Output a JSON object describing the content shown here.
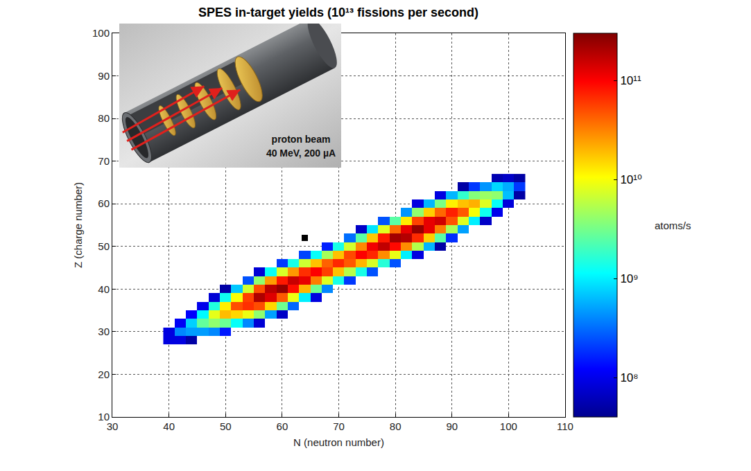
{
  "chart_data": {
    "type": "heatmap",
    "title": "SPES in-target yields (10¹³ fissions per second)",
    "x_label": "N (neutron number)",
    "y_label": "Z (charge number)",
    "xlim": [
      30,
      110
    ],
    "xticks": [
      30,
      40,
      50,
      60,
      70,
      80,
      90,
      100,
      110
    ],
    "ylim": [
      10,
      100
    ],
    "yticks": [
      10,
      20,
      30,
      40,
      50,
      60,
      70,
      80,
      90,
      100
    ],
    "grid": true,
    "colorbar": {
      "title": "atoms/s",
      "log": true,
      "range": [
        40000000.0,
        300000000000.0
      ],
      "ticks": [
        {
          "value": 100000000.0,
          "label": "10⁸"
        },
        {
          "value": 1000000000.0,
          "label": "10⁹"
        },
        {
          "value": 10000000000.0,
          "label": "10¹⁰"
        },
        {
          "value": 100000000000.0,
          "label": "10¹¹"
        }
      ]
    },
    "cells": [
      [
        40,
        28,
        90000000.0
      ],
      [
        42,
        28,
        90000000.0
      ],
      [
        44,
        28,
        50000000.0
      ],
      [
        40,
        30,
        90000000.0
      ],
      [
        42,
        30,
        400000000.0
      ],
      [
        44,
        30,
        480000000.0
      ],
      [
        46,
        30,
        480000000.0
      ],
      [
        48,
        30,
        400000000.0
      ],
      [
        50,
        30,
        150000000.0
      ],
      [
        42,
        32,
        110000000.0
      ],
      [
        44,
        32,
        750000000.0
      ],
      [
        46,
        32,
        2700000000.0
      ],
      [
        48,
        32,
        4000000000.0
      ],
      [
        50,
        32,
        2900000000.0
      ],
      [
        52,
        32,
        1200000000.0
      ],
      [
        54,
        32,
        400000000.0
      ],
      [
        56,
        32,
        80000000.0
      ],
      [
        44,
        34,
        120000000.0
      ],
      [
        46,
        34,
        1100000000.0
      ],
      [
        48,
        34,
        8500000000.0
      ],
      [
        50,
        34,
        19000000000.0
      ],
      [
        52,
        34,
        15000000000.0
      ],
      [
        54,
        34,
        9000000000.0
      ],
      [
        56,
        34,
        4000000000.0
      ],
      [
        58,
        34,
        500000000.0
      ],
      [
        60,
        34,
        70000000.0
      ],
      [
        46,
        36,
        100000000.0
      ],
      [
        48,
        36,
        1500000000.0
      ],
      [
        50,
        36,
        12000000000.0
      ],
      [
        52,
        36,
        50000000000.0
      ],
      [
        54,
        36,
        65000000000.0
      ],
      [
        56,
        36,
        50000000000.0
      ],
      [
        58,
        36,
        15000000000.0
      ],
      [
        60,
        36,
        3000000000.0
      ],
      [
        62,
        36,
        300000000.0
      ],
      [
        48,
        38,
        80000000.0
      ],
      [
        50,
        38,
        1300000000.0
      ],
      [
        52,
        38,
        10000000000.0
      ],
      [
        54,
        38,
        56000000000.0
      ],
      [
        56,
        38,
        200000000000.0
      ],
      [
        58,
        38,
        130000000000.0
      ],
      [
        60,
        38,
        45000000000.0
      ],
      [
        62,
        38,
        9000000000.0
      ],
      [
        64,
        38,
        1000000000.0
      ],
      [
        66,
        38,
        90000000.0
      ],
      [
        50,
        40,
        50000000.0
      ],
      [
        52,
        40,
        700000000.0
      ],
      [
        54,
        40,
        7000000000.0
      ],
      [
        56,
        40,
        50000000000.0
      ],
      [
        58,
        40,
        180000000000.0
      ],
      [
        60,
        40,
        250000000000.0
      ],
      [
        62,
        40,
        88000000000.0
      ],
      [
        64,
        40,
        20000000000.0
      ],
      [
        66,
        40,
        3000000000.0
      ],
      [
        68,
        40,
        400000000.0
      ],
      [
        54,
        42,
        250000000.0
      ],
      [
        56,
        42,
        4000000000.0
      ],
      [
        58,
        42,
        25000000000.0
      ],
      [
        60,
        42,
        80000000000.0
      ],
      [
        62,
        42,
        160000000000.0
      ],
      [
        64,
        42,
        120000000000.0
      ],
      [
        66,
        42,
        33000000000.0
      ],
      [
        68,
        42,
        8000000000.0
      ],
      [
        70,
        42,
        1400000000.0
      ],
      [
        72,
        42,
        200000000.0
      ],
      [
        56,
        44,
        80000000.0
      ],
      [
        58,
        44,
        1200000000.0
      ],
      [
        60,
        44,
        7500000000.0
      ],
      [
        62,
        44,
        26000000000.0
      ],
      [
        64,
        44,
        66000000000.0
      ],
      [
        66,
        44,
        100000000000.0
      ],
      [
        68,
        44,
        56000000000.0
      ],
      [
        70,
        44,
        18000000000.0
      ],
      [
        72,
        44,
        5600000000.0
      ],
      [
        74,
        44,
        1400000000.0
      ],
      [
        76,
        44,
        250000000.0
      ],
      [
        60,
        46,
        200000000.0
      ],
      [
        62,
        46,
        1400000000.0
      ],
      [
        64,
        46,
        6800000000.0
      ],
      [
        66,
        46,
        18000000000.0
      ],
      [
        68,
        46,
        42000000000.0
      ],
      [
        70,
        46,
        70000000000.0
      ],
      [
        72,
        46,
        45000000000.0
      ],
      [
        74,
        46,
        20000000000.0
      ],
      [
        76,
        46,
        7500000000.0
      ],
      [
        78,
        46,
        1600000000.0
      ],
      [
        80,
        46,
        250000000.0
      ],
      [
        64,
        48,
        220000000.0
      ],
      [
        66,
        48,
        1200000000.0
      ],
      [
        68,
        48,
        4800000000.0
      ],
      [
        70,
        48,
        18000000000.0
      ],
      [
        72,
        48,
        52000000000.0
      ],
      [
        74,
        48,
        100000000000.0
      ],
      [
        76,
        48,
        72000000000.0
      ],
      [
        78,
        48,
        29000000000.0
      ],
      [
        80,
        48,
        8800000000.0
      ],
      [
        82,
        48,
        1000000000.0
      ],
      [
        84,
        48,
        90000000.0
      ],
      [
        68,
        50,
        160000000.0
      ],
      [
        70,
        50,
        1400000000.0
      ],
      [
        72,
        50,
        7200000000.0
      ],
      [
        74,
        50,
        30000000000.0
      ],
      [
        76,
        50,
        110000000000.0
      ],
      [
        78,
        50,
        170000000000.0
      ],
      [
        80,
        50,
        92000000000.0
      ],
      [
        82,
        50,
        29000000000.0
      ],
      [
        84,
        50,
        5500000000.0
      ],
      [
        86,
        50,
        600000000.0
      ],
      [
        88,
        50,
        50000000.0
      ],
      [
        72,
        52,
        320000000.0
      ],
      [
        74,
        52,
        2500000000.0
      ],
      [
        76,
        52,
        17000000000.0
      ],
      [
        78,
        52,
        80000000000.0
      ],
      [
        80,
        52,
        220000000000.0
      ],
      [
        82,
        52,
        190000000000.0
      ],
      [
        84,
        52,
        68000000000.0
      ],
      [
        86,
        52,
        16000000000.0
      ],
      [
        88,
        52,
        2500000000.0
      ],
      [
        90,
        52,
        180000000.0
      ],
      [
        74,
        54,
        70000000.0
      ],
      [
        76,
        54,
        900000000.0
      ],
      [
        78,
        54,
        8000000000.0
      ],
      [
        80,
        54,
        40000000000.0
      ],
      [
        82,
        54,
        120000000000.0
      ],
      [
        84,
        54,
        250000000000.0
      ],
      [
        86,
        54,
        120000000000.0
      ],
      [
        88,
        54,
        33000000000.0
      ],
      [
        90,
        54,
        5000000000.0
      ],
      [
        92,
        54,
        500000000.0
      ],
      [
        78,
        56,
        250000000.0
      ],
      [
        80,
        56,
        2500000000.0
      ],
      [
        82,
        56,
        12500000000.0
      ],
      [
        84,
        56,
        55000000000.0
      ],
      [
        86,
        56,
        120000000000.0
      ],
      [
        88,
        56,
        150000000000.0
      ],
      [
        90,
        56,
        48000000000.0
      ],
      [
        92,
        56,
        8000000000.0
      ],
      [
        94,
        56,
        1000000000.0
      ],
      [
        96,
        56,
        70000000.0
      ],
      [
        82,
        58,
        450000000.0
      ],
      [
        84,
        58,
        4000000000.0
      ],
      [
        86,
        58,
        16000000000.0
      ],
      [
        88,
        58,
        40000000000.0
      ],
      [
        90,
        58,
        75000000000.0
      ],
      [
        92,
        58,
        45000000000.0
      ],
      [
        94,
        58,
        10000000000.0
      ],
      [
        96,
        58,
        1300000000.0
      ],
      [
        98,
        58,
        100000000.0
      ],
      [
        84,
        60,
        90000000.0
      ],
      [
        86,
        60,
        600000000.0
      ],
      [
        88,
        60,
        3300000000.0
      ],
      [
        90,
        60,
        12000000000.0
      ],
      [
        92,
        60,
        18000000000.0
      ],
      [
        94,
        60,
        21000000000.0
      ],
      [
        96,
        60,
        8000000000.0
      ],
      [
        98,
        60,
        1200000000.0
      ],
      [
        100,
        60,
        85000000.0
      ],
      [
        88,
        62,
        90000000.0
      ],
      [
        90,
        62,
        600000000.0
      ],
      [
        92,
        62,
        1750000000.0
      ],
      [
        94,
        62,
        3600000000.0
      ],
      [
        96,
        62,
        4400000000.0
      ],
      [
        98,
        62,
        4000000000.0
      ],
      [
        100,
        62,
        650000000.0
      ],
      [
        102,
        62,
        50000000.0
      ],
      [
        92,
        64,
        50000000.0
      ],
      [
        94,
        64,
        200000000.0
      ],
      [
        96,
        64,
        450000000.0
      ],
      [
        98,
        64,
        800000000.0
      ],
      [
        100,
        64,
        560000000.0
      ],
      [
        102,
        64,
        200000000.0
      ],
      [
        98,
        66,
        56000000.0
      ],
      [
        100,
        66,
        70000000.0
      ],
      [
        102,
        66,
        50000000.0
      ]
    ],
    "series": [
      {
        "type": "scatter",
        "x": [
          64
        ],
        "y": [
          52
        ],
        "color": "#000000",
        "marker": "square"
      }
    ],
    "annotations": [
      "proton beam",
      "40 MeV, 200 µA"
    ]
  }
}
